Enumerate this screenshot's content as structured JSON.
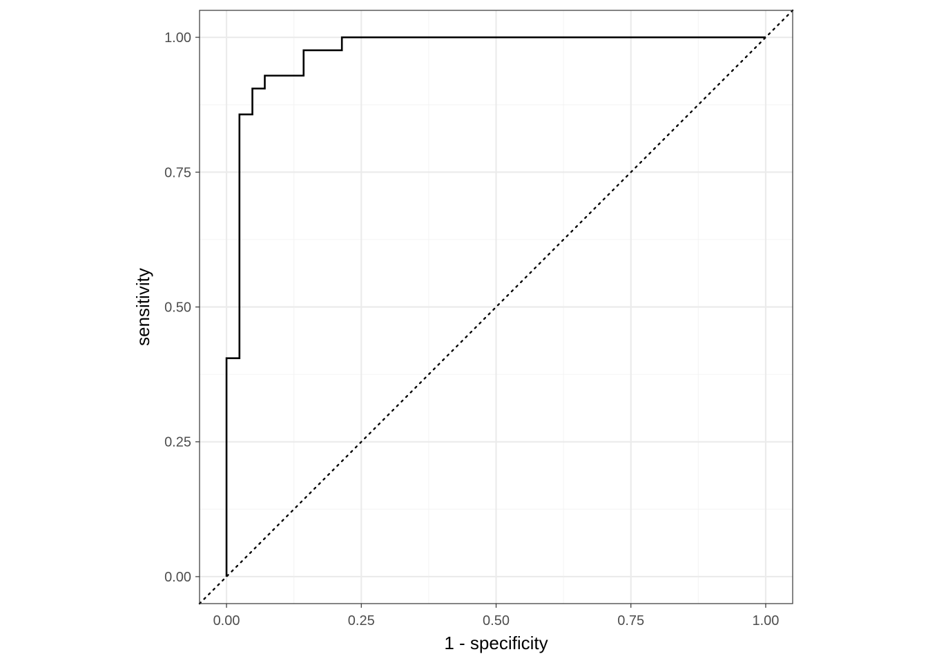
{
  "chart_data": {
    "type": "line",
    "xlabel": "1 - specificity",
    "ylabel": "sensitivity",
    "xlim": [
      -0.05,
      1.05
    ],
    "ylim": [
      -0.05,
      1.05
    ],
    "x_ticks": [
      "0.00",
      "0.25",
      "0.50",
      "0.75",
      "1.00"
    ],
    "y_ticks": [
      "0.00",
      "0.25",
      "0.50",
      "0.75",
      "1.00"
    ],
    "grid": true,
    "series": [
      {
        "style": "step",
        "x": [
          0.0,
          0.0,
          0.024,
          0.024,
          0.048,
          0.048,
          0.071,
          0.071,
          0.143,
          0.143,
          0.214,
          0.214,
          1.0
        ],
        "y": [
          0.0,
          0.405,
          0.405,
          0.857,
          0.857,
          0.905,
          0.905,
          0.929,
          0.929,
          0.976,
          0.976,
          1.0,
          1.0
        ]
      },
      {
        "style": "dotted-reference",
        "x": [
          -0.05,
          1.05
        ],
        "y": [
          -0.05,
          1.05
        ]
      }
    ],
    "colors": {
      "curve": "#000000",
      "grid_major": "#ebebeb",
      "grid_minor": "#f4f4f4",
      "border": "#333333"
    }
  }
}
